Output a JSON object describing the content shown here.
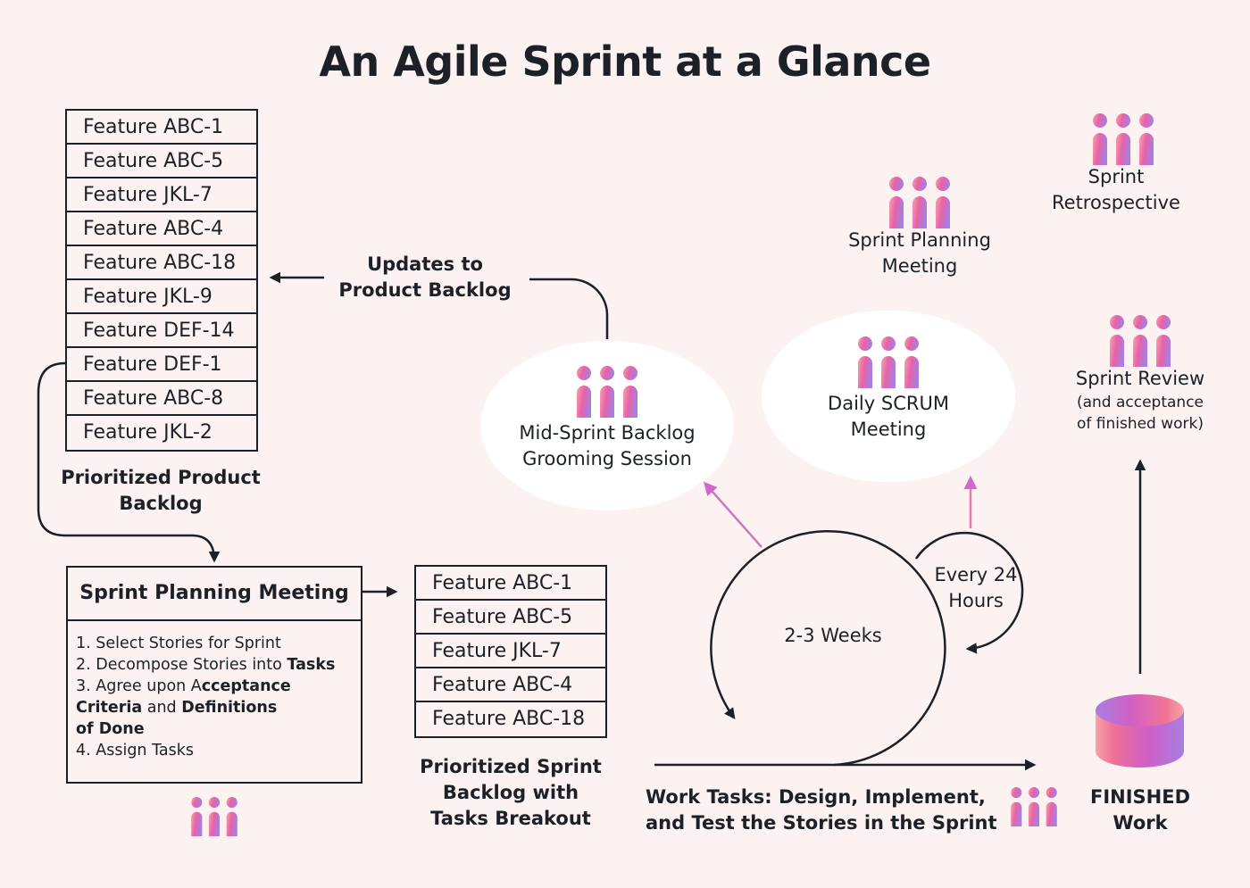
{
  "title": "An Agile Sprint at a Glance",
  "product_backlog": {
    "items": [
      "Feature ABC-1",
      "Feature ABC-5",
      "Feature JKL-7",
      "Feature ABC-4",
      "Feature ABC-18",
      "Feature JKL-9",
      "Feature DEF-14",
      "Feature DEF-1",
      "Feature ABC-8",
      "Feature JKL-2"
    ],
    "caption_line1": "Prioritized Product",
    "caption_line2": "Backlog"
  },
  "updates": {
    "line1": "Updates to",
    "line2": "Product Backlog"
  },
  "grooming": {
    "line1": "Mid-Sprint Backlog",
    "line2": "Grooming Session"
  },
  "daily_scrum": {
    "line1": "Daily SCRUM",
    "line2": "Meeting"
  },
  "sprint_planning_top": {
    "line1": "Sprint Planning",
    "line2": "Meeting"
  },
  "retrospective": {
    "line1": "Sprint",
    "line2": "Retrospective"
  },
  "review": {
    "line1": "Sprint Review",
    "line2": "(and acceptance",
    "line3": "of finished work)"
  },
  "sprint_planning_box": {
    "title": "Sprint Planning Meeting",
    "steps": [
      {
        "a": "1. Select Stories for Sprint"
      },
      {
        "a": "2. Decompose Stories into ",
        "b": "Tasks"
      },
      {
        "a": "3. Agree upon A",
        "b": "cceptance"
      },
      {
        "b": "Criteria",
        "a": " and ",
        "c": "Definitions"
      },
      {
        "b": "of Done"
      },
      {
        "a": "4. Assign Tasks"
      }
    ]
  },
  "sprint_backlog": {
    "items": [
      "Feature ABC-1",
      "Feature ABC-5",
      "Feature JKL-7",
      "Feature ABC-4",
      "Feature ABC-18"
    ],
    "caption_line1": "Prioritized Sprint",
    "caption_line2": "Backlog with",
    "caption_line3": "Tasks Breakout"
  },
  "cycle": {
    "sprint_length": "2-3 Weeks",
    "daily_line1": "Every 24",
    "daily_line2": "Hours"
  },
  "work_tasks": {
    "line1": "Work Tasks: Design, Implement,",
    "line2": "and Test the Stories in the Sprint"
  },
  "finished": {
    "line1": "FINISHED",
    "line2": "Work"
  },
  "colors": {
    "background": "#fdf2f2",
    "ink": "#1b2127",
    "gradient_start": "#f7a3ab",
    "gradient_mid": "#e862a8",
    "gradient_end": "#a77fe0"
  }
}
